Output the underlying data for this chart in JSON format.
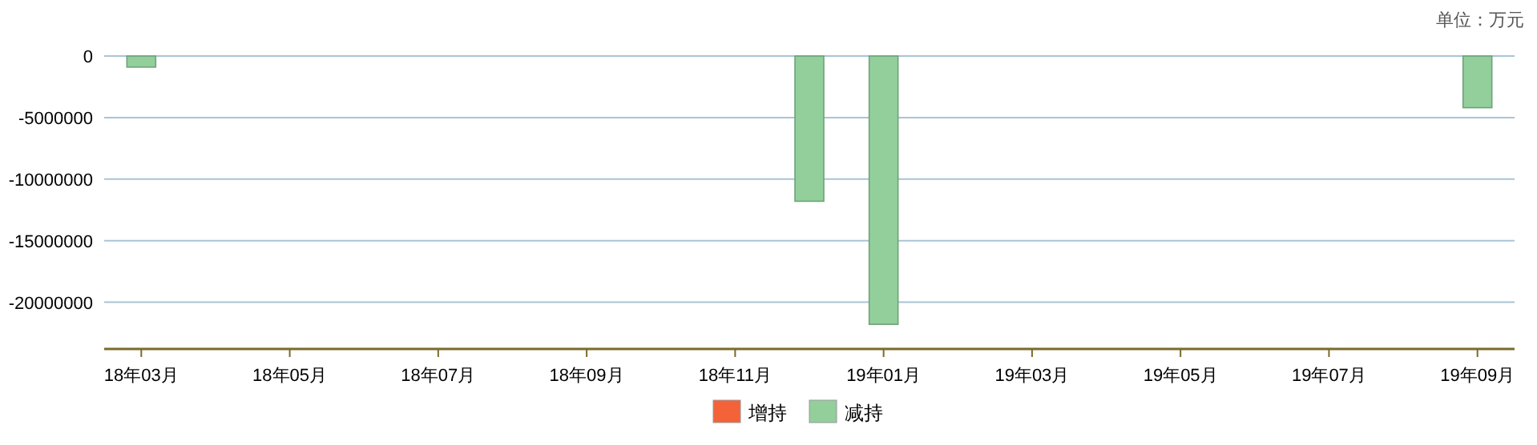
{
  "chart_data": {
    "type": "bar",
    "annotations": [
      "单位：万元"
    ],
    "categories": [
      "18年03月",
      null,
      "18年05月",
      null,
      "18年07月",
      null,
      "18年09月",
      null,
      "18年11月",
      null,
      "19年01月",
      null,
      "19年03月",
      null,
      "19年05月",
      null,
      "19年07月",
      null,
      "19年09月"
    ],
    "series": [
      {
        "name": "增持",
        "color": "#f4623a",
        "values": [
          null,
          null,
          null,
          null,
          null,
          null,
          null,
          null,
          null,
          null,
          null,
          null,
          null,
          null,
          null,
          null,
          null,
          null,
          null
        ]
      },
      {
        "name": "减持",
        "color": "#92cf9b",
        "values": [
          -900000,
          null,
          null,
          null,
          null,
          null,
          null,
          null,
          null,
          -11800000,
          -21800000,
          null,
          null,
          null,
          null,
          null,
          null,
          null,
          -4200000
        ]
      }
    ],
    "ylim": [
      -23800000,
      0
    ],
    "yticks": [
      0,
      -5000000,
      -10000000,
      -15000000,
      -20000000
    ],
    "grid": "y",
    "legend": "bottom"
  }
}
